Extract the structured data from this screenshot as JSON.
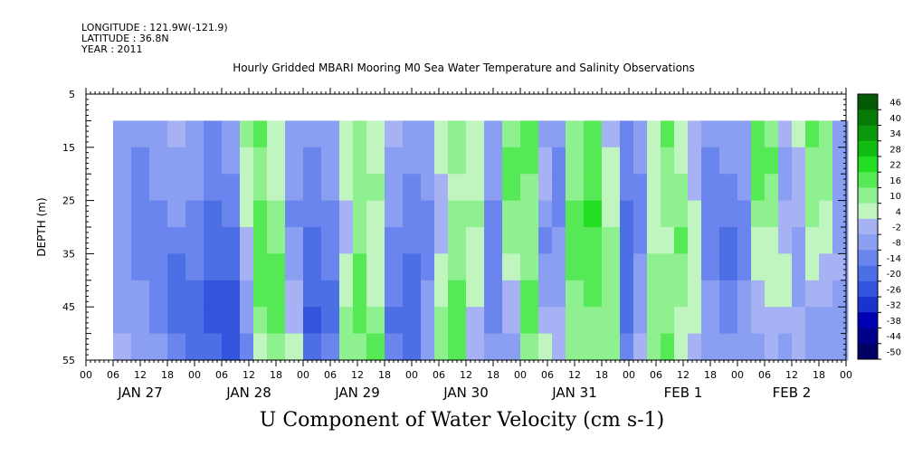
{
  "header": {
    "longitude": "LONGITUDE : 121.9W(-121.9)",
    "latitude": "LATITUDE : 36.8N",
    "year": "YEAR : 2011"
  },
  "chart_data": {
    "type": "heatmap",
    "title": "Hourly Gridded MBARI Mooring M0 Sea Water Temperature and Salinity Observations",
    "xlabel": "U Component of Water Velocity (cm s-1)",
    "ylabel": "DEPTH (m)",
    "ylim": [
      5,
      55
    ],
    "y_inverted": true,
    "y_ticks": [
      5,
      15,
      25,
      35,
      45,
      55
    ],
    "x_hour_ticks": [
      "00",
      "06",
      "12",
      "18",
      "00",
      "06",
      "12",
      "18",
      "00",
      "06",
      "12",
      "18",
      "00",
      "06",
      "12",
      "18",
      "00",
      "06",
      "12",
      "18",
      "00",
      "06",
      "12",
      "18",
      "00",
      "06",
      "12",
      "18",
      "00"
    ],
    "x_day_labels": [
      "JAN 27",
      "JAN 28",
      "JAN 29",
      "JAN 30",
      "JAN 31",
      "FEB  1",
      "FEB  2"
    ],
    "x_range_hours": [
      0,
      168
    ],
    "data_start_hour": 6,
    "data_depth_range": [
      10,
      55
    ],
    "colorbar": {
      "levels": [
        -50,
        -44,
        -38,
        -32,
        -26,
        -20,
        -14,
        -8,
        -2,
        4,
        10,
        16,
        22,
        28,
        34,
        40,
        46
      ],
      "labels": [
        "46",
        "40",
        "34",
        "28",
        "22",
        "16",
        "10",
        "4",
        "-2",
        "-8",
        "-14",
        "-20",
        "-26",
        "-32",
        "-38",
        "-44",
        "-50"
      ],
      "colors": [
        "#000066",
        "#00008c",
        "#0000b3",
        "#1a33cc",
        "#3355dd",
        "#4d6fe6",
        "#6a85ee",
        "#8a9ff2",
        "#a6b2f4",
        "#c0f5c0",
        "#8ff08f",
        "#55ea55",
        "#22dd22",
        "#11bb11",
        "#0a990a",
        "#067a06",
        "#045a04"
      ]
    },
    "columns": [
      {
        "h": 6,
        "u": [
          -6,
          -6,
          -4,
          -4,
          -6,
          -8,
          -6,
          -4,
          -2
        ]
      },
      {
        "h": 10,
        "u": [
          -8,
          -10,
          -12,
          -14,
          -12,
          -10,
          -8,
          -8,
          -6
        ]
      },
      {
        "h": 14,
        "u": [
          -4,
          -6,
          -8,
          -10,
          -12,
          -14,
          -12,
          -10,
          -8
        ]
      },
      {
        "h": 18,
        "u": [
          -2,
          -4,
          -6,
          -8,
          -14,
          -16,
          -18,
          -16,
          -12
        ]
      },
      {
        "h": 22,
        "u": [
          -8,
          -6,
          -8,
          -10,
          -12,
          -14,
          -18,
          -20,
          -16
        ]
      },
      {
        "h": 26,
        "u": [
          -10,
          -12,
          -14,
          -16,
          -18,
          -20,
          -22,
          -24,
          -20
        ]
      },
      {
        "h": 30,
        "u": [
          -6,
          -8,
          -10,
          -12,
          -16,
          -18,
          -22,
          -26,
          -24
        ]
      },
      {
        "h": 34,
        "u": [
          10,
          8,
          6,
          4,
          2,
          0,
          -4,
          -8,
          -12
        ]
      },
      {
        "h": 37,
        "u": [
          16,
          14,
          12,
          16,
          18,
          20,
          16,
          12,
          8
        ]
      },
      {
        "h": 40,
        "u": [
          4,
          6,
          8,
          10,
          14,
          18,
          20,
          18,
          14
        ]
      },
      {
        "h": 44,
        "u": [
          -4,
          -6,
          -8,
          -10,
          -8,
          -6,
          -2,
          2,
          6
        ]
      },
      {
        "h": 48,
        "u": [
          -8,
          -10,
          -12,
          -14,
          -16,
          -18,
          -20,
          -22,
          -18
        ]
      },
      {
        "h": 52,
        "u": [
          -4,
          -6,
          -8,
          -10,
          -12,
          -14,
          -16,
          -18,
          -14
        ]
      },
      {
        "h": 56,
        "u": [
          8,
          6,
          4,
          2,
          0,
          4,
          8,
          12,
          10
        ]
      },
      {
        "h": 59,
        "u": [
          14,
          12,
          10,
          12,
          14,
          16,
          18,
          16,
          14
        ]
      },
      {
        "h": 62,
        "u": [
          6,
          8,
          10,
          8,
          6,
          4,
          8,
          12,
          16
        ]
      },
      {
        "h": 66,
        "u": [
          -2,
          -4,
          -6,
          -8,
          -10,
          -12,
          -14,
          -16,
          -12
        ]
      },
      {
        "h": 70,
        "u": [
          -6,
          -8,
          -10,
          -12,
          -14,
          -16,
          -18,
          -20,
          -16
        ]
      },
      {
        "h": 74,
        "u": [
          -4,
          -6,
          -8,
          -10,
          -12,
          -10,
          -8,
          -6,
          -4
        ]
      },
      {
        "h": 77,
        "u": [
          6,
          4,
          2,
          0,
          2,
          4,
          8,
          12,
          14
        ]
      },
      {
        "h": 80,
        "u": [
          12,
          10,
          8,
          10,
          12,
          14,
          16,
          18,
          16
        ]
      },
      {
        "h": 84,
        "u": [
          4,
          6,
          8,
          10,
          8,
          6,
          4,
          2,
          0
        ]
      },
      {
        "h": 88,
        "u": [
          -4,
          -6,
          -8,
          -10,
          -12,
          -14,
          -12,
          -10,
          -8
        ]
      },
      {
        "h": 92,
        "u": [
          14,
          16,
          18,
          14,
          10,
          6,
          2,
          -2,
          -6
        ]
      },
      {
        "h": 96,
        "u": [
          18,
          16,
          14,
          12,
          10,
          14,
          16,
          18,
          14
        ]
      },
      {
        "h": 100,
        "u": [
          -4,
          -2,
          0,
          -6,
          -10,
          -8,
          -4,
          2,
          8
        ]
      },
      {
        "h": 103,
        "u": [
          -8,
          -10,
          -12,
          -10,
          -8,
          -6,
          -4,
          -2,
          0
        ]
      },
      {
        "h": 106,
        "u": [
          10,
          12,
          14,
          16,
          18,
          16,
          14,
          12,
          10
        ]
      },
      {
        "h": 110,
        "u": [
          16,
          18,
          20,
          22,
          20,
          18,
          16,
          14,
          12
        ]
      },
      {
        "h": 114,
        "u": [
          2,
          4,
          6,
          8,
          10,
          12,
          14,
          12,
          10
        ]
      },
      {
        "h": 118,
        "u": [
          -10,
          -12,
          -14,
          -16,
          -18,
          -20,
          -18,
          -16,
          -12
        ]
      },
      {
        "h": 121,
        "u": [
          -6,
          -8,
          -10,
          -12,
          -10,
          -8,
          -6,
          -4,
          -2
        ]
      },
      {
        "h": 124,
        "u": [
          8,
          6,
          4,
          6,
          8,
          10,
          12,
          14,
          12
        ]
      },
      {
        "h": 127,
        "u": [
          16,
          14,
          12,
          10,
          8,
          10,
          12,
          14,
          16
        ]
      },
      {
        "h": 130,
        "u": [
          6,
          8,
          10,
          14,
          16,
          14,
          10,
          6,
          4
        ]
      },
      {
        "h": 133,
        "u": [
          -2,
          0,
          2,
          4,
          6,
          8,
          6,
          4,
          2
        ]
      },
      {
        "h": 136,
        "u": [
          -8,
          -10,
          -12,
          -14,
          -12,
          -10,
          -8,
          -6,
          -4
        ]
      },
      {
        "h": 140,
        "u": [
          -6,
          -8,
          -10,
          -12,
          -16,
          -18,
          -14,
          -10,
          -6
        ]
      },
      {
        "h": 144,
        "u": [
          -4,
          -6,
          -8,
          -10,
          -12,
          -10,
          -8,
          -6,
          -4
        ]
      },
      {
        "h": 147,
        "u": [
          20,
          18,
          16,
          12,
          8,
          4,
          2,
          -2,
          -4
        ]
      },
      {
        "h": 150,
        "u": [
          14,
          16,
          14,
          10,
          8,
          6,
          4,
          2,
          0
        ]
      },
      {
        "h": 153,
        "u": [
          -2,
          -4,
          -6,
          -2,
          2,
          6,
          4,
          0,
          -4
        ]
      },
      {
        "h": 156,
        "u": [
          4,
          2,
          0,
          -2,
          -4,
          -6,
          -4,
          -2,
          0
        ]
      },
      {
        "h": 159,
        "u": [
          16,
          14,
          12,
          10,
          8,
          4,
          0,
          -4,
          -6
        ]
      },
      {
        "h": 162,
        "u": [
          10,
          12,
          10,
          8,
          6,
          2,
          -2,
          -4,
          -6
        ]
      },
      {
        "h": 165,
        "u": [
          -4,
          -6,
          -8,
          -6,
          -4,
          -2,
          -4,
          -6,
          -8
        ]
      },
      {
        "h": 168,
        "u": [
          -6,
          -6,
          -4,
          -4,
          -6,
          -8,
          -6,
          -4,
          -2
        ]
      }
    ]
  }
}
